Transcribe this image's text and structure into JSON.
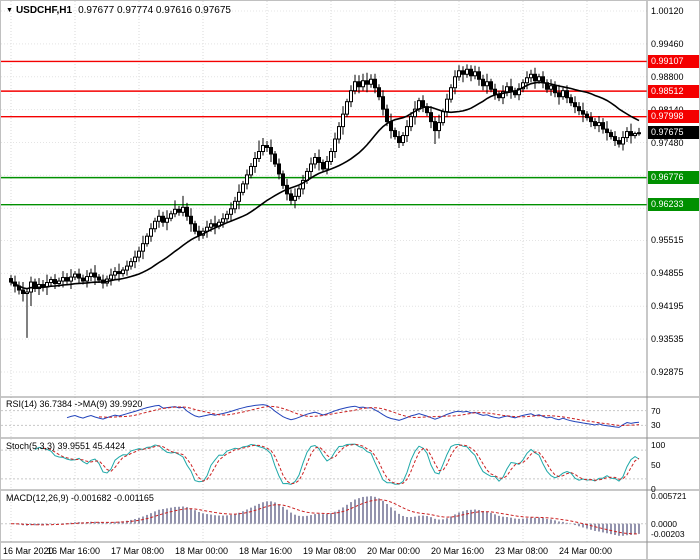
{
  "header": {
    "marker": "▼",
    "symbol": "USDCHF,H1",
    "ohlc": "0.97677 0.97774 0.97616 0.97675"
  },
  "colors": {
    "resistance": "#f40000",
    "support": "#009000",
    "current": "#000000",
    "candle": "#000000",
    "ma_line": "#000000",
    "rsi_line": "#2244bb",
    "rsi_signal": "#cc2222",
    "stoch_line": "#1fa8a8",
    "stoch_signal": "#cc2222",
    "macd_histogram": "#9393ad",
    "macd_signal": "#cc2222",
    "grid": "#d9d9d9",
    "divider": "#909090"
  },
  "chart_data": {
    "type": "candlestick",
    "symbol": "USDCHF",
    "timeframe": "H1",
    "last_ohlc": {
      "open": 0.97677,
      "high": 0.97774,
      "low": 0.97616,
      "close": 0.97675
    },
    "y_axis_ticks": [
      1.0012,
      0.9946,
      0.988,
      0.9814,
      0.9748,
      0.95515,
      0.94855,
      0.94195,
      0.93535,
      0.92875
    ],
    "hidden_grid_ticks": [
      0.9682,
      0.9616
    ],
    "x_axis_labels": [
      "16 Mar 2020",
      "16 Mar 16:00",
      "17 Mar 08:00",
      "18 Mar 00:00",
      "18 Mar 16:00",
      "19 Mar 08:00",
      "20 Mar 00:00",
      "20 Mar 16:00",
      "23 Mar 08:00",
      "24 Mar 00:00"
    ],
    "bars_per_x_label": 16,
    "horizontal_levels": [
      {
        "value": 0.99107,
        "role": "resistance"
      },
      {
        "value": 0.98512,
        "role": "resistance"
      },
      {
        "value": 0.97998,
        "role": "resistance"
      },
      {
        "value": 0.97675,
        "role": "current"
      },
      {
        "value": 0.96776,
        "role": "support"
      },
      {
        "value": 0.96233,
        "role": "support"
      }
    ],
    "candles": [
      [
        0.9475,
        0.9482,
        0.9461,
        0.9468
      ],
      [
        0.9468,
        0.9481,
        0.9447,
        0.946
      ],
      [
        0.946,
        0.9469,
        0.9443,
        0.9452
      ],
      [
        0.9452,
        0.9468,
        0.9429,
        0.9445
      ],
      [
        0.9445,
        0.9455,
        0.9356,
        0.9448
      ],
      [
        0.9448,
        0.9479,
        0.942,
        0.9468
      ],
      [
        0.9468,
        0.9475,
        0.9448,
        0.9455
      ],
      [
        0.9455,
        0.9476,
        0.9442,
        0.9463
      ],
      [
        0.9463,
        0.9472,
        0.9449,
        0.9458
      ],
      [
        0.9458,
        0.9483,
        0.9442,
        0.9467
      ],
      [
        0.9467,
        0.9479,
        0.9461,
        0.9473
      ],
      [
        0.9473,
        0.9484,
        0.9454,
        0.9465
      ],
      [
        0.9465,
        0.9477,
        0.9458,
        0.947
      ],
      [
        0.947,
        0.949,
        0.9457,
        0.9477
      ],
      [
        0.9477,
        0.9486,
        0.9461,
        0.947
      ],
      [
        0.947,
        0.9494,
        0.9454,
        0.9478
      ],
      [
        0.9478,
        0.949,
        0.9472,
        0.9484
      ],
      [
        0.9484,
        0.9495,
        0.9465,
        0.9476
      ],
      [
        0.9476,
        0.9483,
        0.9463,
        0.947
      ],
      [
        0.947,
        0.9492,
        0.9457,
        0.9479
      ],
      [
        0.9479,
        0.9495,
        0.947,
        0.9486
      ],
      [
        0.9486,
        0.9502,
        0.9462,
        0.9478
      ],
      [
        0.9478,
        0.9484,
        0.9466,
        0.9472
      ],
      [
        0.9472,
        0.9483,
        0.9455,
        0.9466
      ],
      [
        0.9466,
        0.9481,
        0.9459,
        0.9474
      ],
      [
        0.9474,
        0.9495,
        0.9461,
        0.9482
      ],
      [
        0.9482,
        0.9498,
        0.9473,
        0.9489
      ],
      [
        0.9489,
        0.9505,
        0.9469,
        0.9485
      ],
      [
        0.9485,
        0.9498,
        0.9479,
        0.9492
      ],
      [
        0.9492,
        0.9511,
        0.9481,
        0.95
      ],
      [
        0.95,
        0.9516,
        0.9493,
        0.9509
      ],
      [
        0.9509,
        0.9531,
        0.9496,
        0.9518
      ],
      [
        0.9518,
        0.9539,
        0.9509,
        0.953
      ],
      [
        0.953,
        0.9561,
        0.9514,
        0.9545
      ],
      [
        0.9545,
        0.9566,
        0.9539,
        0.956
      ],
      [
        0.956,
        0.9586,
        0.9549,
        0.9575
      ],
      [
        0.9575,
        0.9597,
        0.9568,
        0.959
      ],
      [
        0.959,
        0.9613,
        0.9577,
        0.96
      ],
      [
        0.96,
        0.9609,
        0.9579,
        0.9588
      ],
      [
        0.9588,
        0.9612,
        0.9572,
        0.9596
      ],
      [
        0.9596,
        0.9611,
        0.959,
        0.9605
      ],
      [
        0.9605,
        0.9632,
        0.9598,
        0.9614
      ],
      [
        0.9614,
        0.9621,
        0.9601,
        0.9608
      ],
      [
        0.9608,
        0.9641,
        0.96,
        0.9618
      ],
      [
        0.9618,
        0.9627,
        0.9591,
        0.96
      ],
      [
        0.96,
        0.9616,
        0.9569,
        0.9585
      ],
      [
        0.9585,
        0.9591,
        0.9564,
        0.957
      ],
      [
        0.957,
        0.9581,
        0.9551,
        0.9562
      ],
      [
        0.9562,
        0.9577,
        0.9555,
        0.957
      ],
      [
        0.957,
        0.9591,
        0.9557,
        0.9578
      ],
      [
        0.9578,
        0.9594,
        0.9569,
        0.9585
      ],
      [
        0.9585,
        0.9601,
        0.9564,
        0.958
      ],
      [
        0.958,
        0.9594,
        0.9574,
        0.9588
      ],
      [
        0.9588,
        0.9606,
        0.9577,
        0.9595
      ],
      [
        0.9595,
        0.9611,
        0.9588,
        0.9604
      ],
      [
        0.9604,
        0.9628,
        0.9591,
        0.9615
      ],
      [
        0.9615,
        0.9639,
        0.9606,
        0.963
      ],
      [
        0.963,
        0.9664,
        0.9614,
        0.9648
      ],
      [
        0.9648,
        0.9671,
        0.9642,
        0.9665
      ],
      [
        0.9665,
        0.9694,
        0.9654,
        0.9683
      ],
      [
        0.9683,
        0.9707,
        0.9676,
        0.97
      ],
      [
        0.97,
        0.9729,
        0.9687,
        0.9716
      ],
      [
        0.9716,
        0.9752,
        0.9709,
        0.973
      ],
      [
        0.973,
        0.9757,
        0.9722,
        0.9742
      ],
      [
        0.9742,
        0.9751,
        0.9729,
        0.9738
      ],
      [
        0.9738,
        0.9754,
        0.9709,
        0.9725
      ],
      [
        0.9725,
        0.9731,
        0.9699,
        0.9705
      ],
      [
        0.9705,
        0.9716,
        0.9674,
        0.9685
      ],
      [
        0.9685,
        0.9692,
        0.9655,
        0.9662
      ],
      [
        0.9662,
        0.9675,
        0.9632,
        0.9645
      ],
      [
        0.9645,
        0.9654,
        0.9623,
        0.9632
      ],
      [
        0.9632,
        0.9656,
        0.9616,
        0.964
      ],
      [
        0.964,
        0.9661,
        0.9634,
        0.9655
      ],
      [
        0.9655,
        0.9683,
        0.9644,
        0.9672
      ],
      [
        0.9672,
        0.9697,
        0.9665,
        0.969
      ],
      [
        0.969,
        0.9718,
        0.9677,
        0.9705
      ],
      [
        0.9705,
        0.9727,
        0.9696,
        0.9718
      ],
      [
        0.9718,
        0.9734,
        0.9692,
        0.9708
      ],
      [
        0.9708,
        0.9714,
        0.9689,
        0.9695
      ],
      [
        0.9695,
        0.9721,
        0.9684,
        0.971
      ],
      [
        0.971,
        0.9737,
        0.9703,
        0.973
      ],
      [
        0.973,
        0.9768,
        0.9717,
        0.9755
      ],
      [
        0.9755,
        0.9789,
        0.9746,
        0.978
      ],
      [
        0.978,
        0.9821,
        0.9764,
        0.9805
      ],
      [
        0.9805,
        0.9836,
        0.9799,
        0.983
      ],
      [
        0.983,
        0.9863,
        0.9819,
        0.9852
      ],
      [
        0.9852,
        0.9884,
        0.9845,
        0.987
      ],
      [
        0.987,
        0.9883,
        0.9847,
        0.986
      ],
      [
        0.986,
        0.9886,
        0.9852,
        0.9872
      ],
      [
        0.9872,
        0.9888,
        0.9849,
        0.9865
      ],
      [
        0.9865,
        0.9885,
        0.9858,
        0.9875
      ],
      [
        0.9875,
        0.9886,
        0.9847,
        0.9858
      ],
      [
        0.9858,
        0.9865,
        0.9833,
        0.984
      ],
      [
        0.984,
        0.9853,
        0.9802,
        0.9815
      ],
      [
        0.9815,
        0.9824,
        0.9781,
        0.979
      ],
      [
        0.979,
        0.9806,
        0.9756,
        0.9772
      ],
      [
        0.9772,
        0.9778,
        0.9754,
        0.976
      ],
      [
        0.976,
        0.9771,
        0.9737,
        0.9748
      ],
      [
        0.9748,
        0.9769,
        0.9741,
        0.9762
      ],
      [
        0.9762,
        0.9793,
        0.9749,
        0.978
      ],
      [
        0.978,
        0.9809,
        0.9771,
        0.98
      ],
      [
        0.98,
        0.9831,
        0.9784,
        0.9815
      ],
      [
        0.9815,
        0.9838,
        0.9809,
        0.9832
      ],
      [
        0.9832,
        0.9843,
        0.9809,
        0.982
      ],
      [
        0.982,
        0.9827,
        0.9801,
        0.9808
      ],
      [
        0.9808,
        0.9821,
        0.9777,
        0.979
      ],
      [
        0.979,
        0.9799,
        0.9745,
        0.9772
      ],
      [
        0.9772,
        0.9804,
        0.9756,
        0.9788
      ],
      [
        0.9788,
        0.9816,
        0.9782,
        0.981
      ],
      [
        0.981,
        0.9846,
        0.9799,
        0.9835
      ],
      [
        0.9835,
        0.9865,
        0.9828,
        0.9858
      ],
      [
        0.9858,
        0.9893,
        0.9845,
        0.988
      ],
      [
        0.988,
        0.9903,
        0.9872,
        0.9892
      ],
      [
        0.9892,
        0.9901,
        0.9869,
        0.9885
      ],
      [
        0.9885,
        0.9905,
        0.9878,
        0.9895
      ],
      [
        0.9895,
        0.9903,
        0.9871,
        0.9882
      ],
      [
        0.9882,
        0.9902,
        0.9875,
        0.989
      ],
      [
        0.989,
        0.99,
        0.9862,
        0.9875
      ],
      [
        0.9875,
        0.9884,
        0.9853,
        0.9862
      ],
      [
        0.9862,
        0.9886,
        0.9846,
        0.987
      ],
      [
        0.987,
        0.9876,
        0.9849,
        0.9855
      ],
      [
        0.9855,
        0.9866,
        0.9834,
        0.9845
      ],
      [
        0.9845,
        0.9852,
        0.9831,
        0.9838
      ],
      [
        0.9838,
        0.9863,
        0.9825,
        0.985
      ],
      [
        0.985,
        0.9869,
        0.9841,
        0.986
      ],
      [
        0.986,
        0.9876,
        0.9836,
        0.9852
      ],
      [
        0.9852,
        0.9858,
        0.9838,
        0.9844
      ],
      [
        0.9844,
        0.9867,
        0.9833,
        0.9856
      ],
      [
        0.9856,
        0.9875,
        0.9849,
        0.9868
      ],
      [
        0.9868,
        0.9891,
        0.9855,
        0.9878
      ],
      [
        0.9878,
        0.9894,
        0.9869,
        0.9885
      ],
      [
        0.9885,
        0.9898,
        0.9856,
        0.9872
      ],
      [
        0.9872,
        0.9886,
        0.9866,
        0.988
      ],
      [
        0.988,
        0.9891,
        0.9857,
        0.9868
      ],
      [
        0.9868,
        0.9875,
        0.9848,
        0.9855
      ],
      [
        0.9855,
        0.9875,
        0.9842,
        0.9862
      ],
      [
        0.9862,
        0.9871,
        0.9839,
        0.9848
      ],
      [
        0.9848,
        0.9864,
        0.9824,
        0.984
      ],
      [
        0.984,
        0.9858,
        0.9834,
        0.9852
      ],
      [
        0.9852,
        0.9863,
        0.9827,
        0.9838
      ],
      [
        0.9838,
        0.9845,
        0.9821,
        0.9828
      ],
      [
        0.9828,
        0.9841,
        0.9807,
        0.982
      ],
      [
        0.982,
        0.9829,
        0.9803,
        0.9812
      ],
      [
        0.9812,
        0.9828,
        0.9789,
        0.9805
      ],
      [
        0.9805,
        0.9811,
        0.9792,
        0.9798
      ],
      [
        0.9798,
        0.9809,
        0.9779,
        0.979
      ],
      [
        0.979,
        0.9797,
        0.9775,
        0.9782
      ],
      [
        0.9782,
        0.9801,
        0.9769,
        0.9788
      ],
      [
        0.9788,
        0.9797,
        0.9766,
        0.9775
      ],
      [
        0.9775,
        0.9791,
        0.9752,
        0.9768
      ],
      [
        0.9768,
        0.9774,
        0.9754,
        0.976
      ],
      [
        0.976,
        0.9771,
        0.9741,
        0.9752
      ],
      [
        0.9752,
        0.9759,
        0.9738,
        0.9745
      ],
      [
        0.9745,
        0.9771,
        0.9732,
        0.9758
      ],
      [
        0.9758,
        0.9779,
        0.9749,
        0.977
      ],
      [
        0.977,
        0.9786,
        0.9746,
        0.9762
      ],
      [
        0.9762,
        0.977,
        0.9756,
        0.9766
      ],
      [
        0.97677,
        0.97774,
        0.97616,
        0.97675
      ]
    ],
    "indicators": [
      {
        "name": "RSI",
        "params": [
          14
        ],
        "display": "RSI(14) 36.7384  ->MA(9) 39.9920",
        "last_value": 36.7384,
        "signal_last_value": 39.992,
        "levels": [
          70,
          30
        ],
        "axis_ticks": [
          {
            "v": 70,
            "t": "70"
          },
          {
            "v": 30,
            "t": "30"
          }
        ]
      },
      {
        "name": "Stochastic",
        "params": [
          5,
          3,
          3
        ],
        "display": "Stoch(5,3,3) 39.9551 45.4424",
        "last_value": 39.9551,
        "signal_last_value": 45.4424,
        "levels": [
          80,
          20
        ],
        "axis_ticks": [
          {
            "v": 100,
            "t": "100"
          },
          {
            "v": 50,
            "t": "50"
          },
          {
            "v": 0,
            "t": "0"
          }
        ]
      },
      {
        "name": "MACD",
        "params": [
          12,
          26,
          9
        ],
        "display": "MACD(12,26,9) -0.001682 -0.001165",
        "last_value": -0.001682,
        "signal_last_value": -0.001165,
        "axis_ticks": [
          {
            "v": 0.005721,
            "t": "0.005721"
          },
          {
            "v": 0,
            "t": "0.0000"
          },
          {
            "v": -0.00203,
            "t": "-0.00203"
          }
        ]
      }
    ]
  }
}
